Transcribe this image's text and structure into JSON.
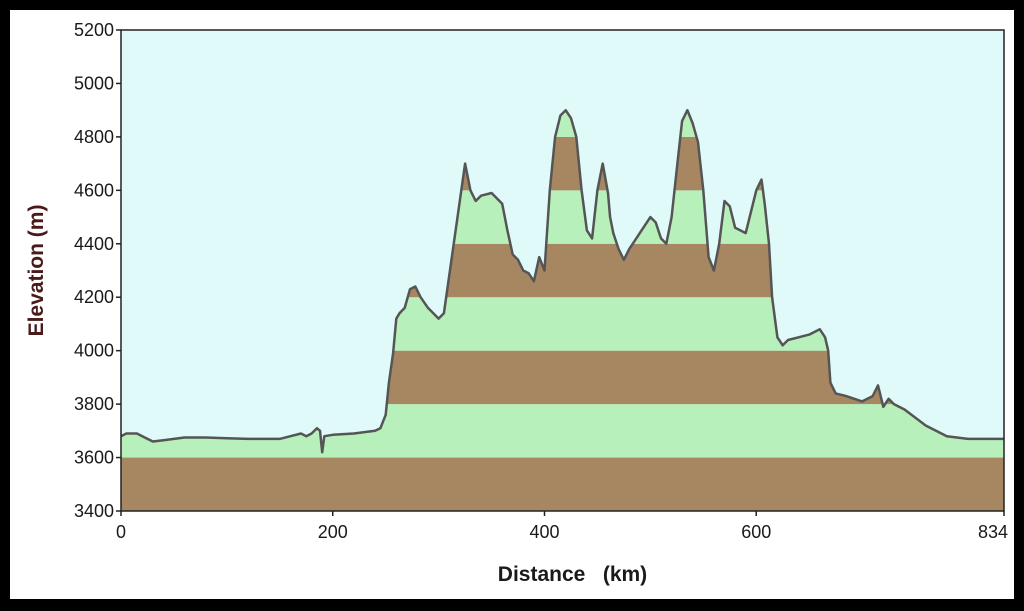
{
  "chart_data": {
    "type": "area",
    "title": "",
    "xlabel": "Distance   (km)",
    "ylabel": "Elevation (m)",
    "xlim": [
      0,
      834
    ],
    "ylim": [
      3400,
      5200
    ],
    "x_ticks": [
      "0",
      "200",
      "400",
      "600",
      "834"
    ],
    "y_ticks": [
      "3400",
      "3600",
      "3800",
      "4000",
      "4200",
      "4400",
      "4600",
      "4800",
      "5000",
      "5200"
    ],
    "grid": false,
    "legend": "none",
    "band_step": 200,
    "colors": {
      "plot_background": "#e0fafa",
      "band_light": "#b8f0bc",
      "band_dark": "#a68762",
      "profile_line": "#555555"
    },
    "series": [
      {
        "x": [
          0,
          5,
          15,
          25,
          30,
          40,
          60,
          80,
          100,
          120,
          150,
          160,
          170,
          175,
          180,
          185,
          188,
          190,
          192,
          200,
          220,
          240,
          245,
          250,
          253,
          257,
          260,
          263,
          268,
          273,
          278,
          283,
          290,
          300,
          305,
          310,
          315,
          320,
          325,
          330,
          335,
          340,
          350,
          360,
          365,
          370,
          375,
          380,
          385,
          390,
          395,
          400,
          405,
          410,
          415,
          420,
          425,
          430,
          435,
          440,
          445,
          450,
          455,
          460,
          462,
          465,
          470,
          475,
          480,
          490,
          500,
          505,
          510,
          515,
          520,
          525,
          530,
          535,
          540,
          545,
          550,
          555,
          560,
          565,
          570,
          575,
          580,
          585,
          590,
          595,
          600,
          605,
          608,
          612,
          615,
          620,
          625,
          630,
          640,
          650,
          660,
          665,
          668,
          670,
          675,
          685,
          700,
          710,
          715,
          720,
          725,
          730,
          740,
          760,
          780,
          800,
          820,
          834
        ],
        "y": [
          3680,
          3690,
          3690,
          3670,
          3660,
          3665,
          3675,
          3675,
          3672,
          3670,
          3670,
          3680,
          3690,
          3680,
          3690,
          3710,
          3700,
          3620,
          3680,
          3685,
          3690,
          3700,
          3710,
          3760,
          3880,
          3990,
          4120,
          4140,
          4160,
          4230,
          4240,
          4200,
          4160,
          4120,
          4140,
          4280,
          4420,
          4560,
          4700,
          4600,
          4560,
          4580,
          4590,
          4550,
          4450,
          4360,
          4340,
          4300,
          4290,
          4260,
          4350,
          4300,
          4600,
          4800,
          4880,
          4900,
          4870,
          4800,
          4600,
          4450,
          4420,
          4600,
          4700,
          4590,
          4500,
          4440,
          4380,
          4340,
          4380,
          4440,
          4500,
          4480,
          4420,
          4400,
          4500,
          4680,
          4860,
          4900,
          4850,
          4780,
          4600,
          4350,
          4300,
          4400,
          4560,
          4540,
          4460,
          4450,
          4440,
          4520,
          4600,
          4640,
          4550,
          4400,
          4200,
          4050,
          4020,
          4040,
          4050,
          4060,
          4080,
          4050,
          4000,
          3880,
          3840,
          3830,
          3810,
          3830,
          3870,
          3790,
          3820,
          3800,
          3780,
          3720,
          3680,
          3670,
          3670,
          3670
        ]
      }
    ]
  }
}
